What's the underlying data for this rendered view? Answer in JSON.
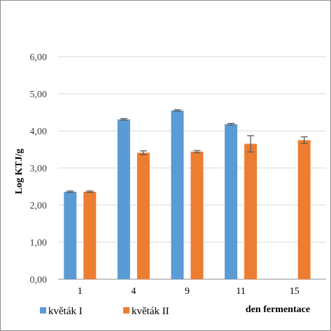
{
  "chart_data": {
    "type": "bar",
    "categories": [
      "1",
      "4",
      "9",
      "11",
      "15"
    ],
    "series": [
      {
        "name": "květák I",
        "color": "#5b9bd5",
        "values": [
          2.36,
          4.31,
          4.55,
          4.18,
          null
        ],
        "errors": [
          0.02,
          0.02,
          0.02,
          0.02,
          null
        ]
      },
      {
        "name": "květák II",
        "color": "#ed7d31",
        "values": [
          2.36,
          3.41,
          3.44,
          3.65,
          3.75
        ],
        "errors": [
          0.02,
          0.05,
          0.03,
          0.22,
          0.09
        ]
      }
    ],
    "yticks": [
      "0,00",
      "1,00",
      "2,00",
      "3,00",
      "4,00",
      "5,00",
      "6,00"
    ],
    "ylim": [
      0,
      6
    ],
    "ylabel": "Log KTJ/g",
    "xlabel": "den fermentace",
    "grid": true,
    "legend_position": "bottom-left"
  }
}
